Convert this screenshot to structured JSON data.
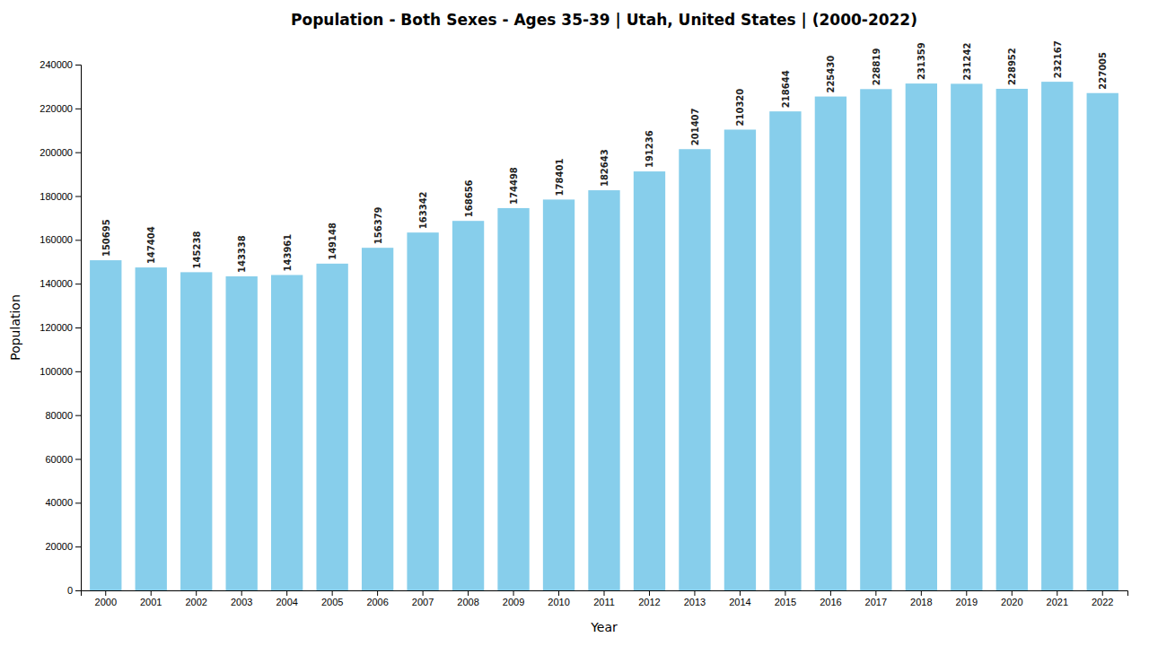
{
  "chart_data": {
    "type": "bar",
    "title": "Population - Both Sexes - Ages 35-39 | Utah, United States |  (2000-2022)",
    "x_label": "Year",
    "y_label": "Population",
    "categories": [
      "2000",
      "2001",
      "2002",
      "2003",
      "2004",
      "2005",
      "2006",
      "2007",
      "2008",
      "2009",
      "2010",
      "2011",
      "2012",
      "2013",
      "2014",
      "2015",
      "2016",
      "2017",
      "2018",
      "2019",
      "2020",
      "2021",
      "2022"
    ],
    "values": [
      150695,
      147404,
      145238,
      143338,
      143961,
      149148,
      156379,
      163342,
      168656,
      174498,
      178401,
      182643,
      191236,
      201407,
      210320,
      218644,
      225430,
      228819,
      231359,
      231242,
      228952,
      232167,
      227005
    ],
    "color": "#87CEEB",
    "ylim": [
      0,
      240000
    ],
    "yticks": [
      0,
      20000,
      40000,
      60000,
      80000,
      100000,
      120000,
      140000,
      160000,
      180000,
      200000,
      220000,
      240000
    ],
    "grid": false,
    "data_labels": true
  }
}
